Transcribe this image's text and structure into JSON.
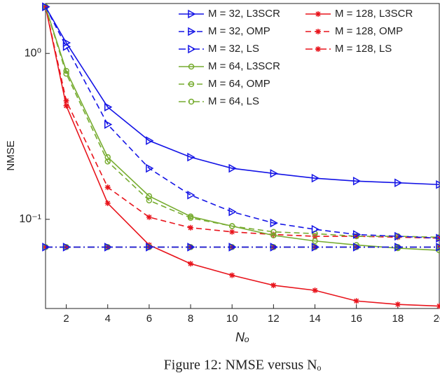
{
  "chart_data": {
    "type": "line",
    "log_y": true,
    "x_label": "Nₒ",
    "y_label": "NMSE",
    "caption": "Figure 12: NMSE versus Nₒ",
    "x": [
      1,
      2,
      4,
      6,
      8,
      10,
      12,
      14,
      16,
      18,
      20
    ],
    "xlim": [
      1,
      20
    ],
    "xticks": [
      2,
      4,
      6,
      8,
      10,
      12,
      14,
      16,
      18,
      20
    ],
    "ylim": [
      0.029,
      2
    ],
    "yticks": [
      {
        "value": 0.1,
        "label": "10⁻¹"
      },
      {
        "value": 1,
        "label": "10⁰"
      }
    ],
    "legend": "upper right",
    "series": [
      {
        "name": "M = 32, L3SCR",
        "color": "#1414e6",
        "line_style": "solid",
        "marker": "triangle",
        "values": [
          1.91,
          1.16,
          0.475,
          0.298,
          0.237,
          0.203,
          0.189,
          0.177,
          0.17,
          0.166,
          0.162
        ]
      },
      {
        "name": "M = 32, OMP",
        "color": "#1414e6",
        "line_style": "dashed",
        "marker": "triangle",
        "values": [
          1.91,
          1.1,
          0.373,
          0.203,
          0.14,
          0.111,
          0.095,
          0.087,
          0.081,
          0.079,
          0.077
        ]
      },
      {
        "name": "M = 32, LS",
        "color": "#1414e6",
        "line_style": "dashdot",
        "marker": "triangle",
        "values": [
          0.068,
          0.068,
          0.068,
          0.068,
          0.068,
          0.068,
          0.068,
          0.068,
          0.068,
          0.068,
          0.068
        ]
      },
      {
        "name": "M = 64, L3SCR",
        "color": "#77ac30",
        "line_style": "solid",
        "marker": "circle",
        "values": [
          1.91,
          0.785,
          0.237,
          0.138,
          0.104,
          0.091,
          0.08,
          0.074,
          0.07,
          0.067,
          0.065
        ]
      },
      {
        "name": "M = 64, OMP",
        "color": "#77ac30",
        "line_style": "dashed",
        "marker": "circle",
        "values": [
          1.91,
          0.755,
          0.223,
          0.13,
          0.102,
          0.091,
          0.084,
          0.082,
          0.079,
          0.079,
          0.078
        ]
      },
      {
        "name": "M = 64, LS",
        "color": "#77ac30",
        "line_style": "dashdot",
        "marker": "circle",
        "values": [
          0.068,
          0.068,
          0.068,
          0.068,
          0.068,
          0.068,
          0.068,
          0.068,
          0.068,
          0.068,
          0.068
        ]
      },
      {
        "name": "M = 128, L3SCR",
        "color": "#e8141c",
        "line_style": "solid",
        "marker": "star",
        "values": [
          1.91,
          0.484,
          0.125,
          0.07,
          0.054,
          0.046,
          0.04,
          0.0373,
          0.0322,
          0.0307,
          0.03
        ]
      },
      {
        "name": "M = 128, OMP",
        "color": "#e8141c",
        "line_style": "dashed",
        "marker": "star",
        "values": [
          1.91,
          0.518,
          0.156,
          0.103,
          0.089,
          0.084,
          0.081,
          0.079,
          0.079,
          0.078,
          0.077
        ]
      },
      {
        "name": "M = 128, LS",
        "color": "#e8141c",
        "line_style": "dashdot",
        "marker": "star",
        "values": [
          0.068,
          0.068,
          0.068,
          0.068,
          0.068,
          0.068,
          0.068,
          0.068,
          0.068,
          0.068,
          0.068
        ]
      }
    ]
  }
}
